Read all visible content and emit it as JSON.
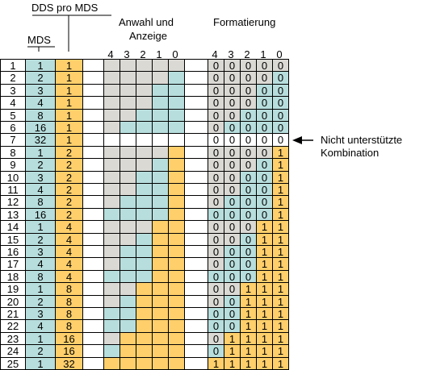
{
  "headers": {
    "dds_pro_mds": "DDS pro MDS",
    "mds": "MDS",
    "anwahl_line1": "Anwahl und",
    "anwahl_line2": "Anzeige",
    "formatierung": "Formatierung",
    "bit_labels": [
      "4",
      "3",
      "2",
      "1",
      "0"
    ]
  },
  "annotation": {
    "line1": "Nicht unterstützte",
    "line2": "Kombination"
  },
  "colors": {
    "teal": "#b7dedd",
    "gray": "#dbd9d4",
    "yellow": "#fecf6b",
    "white": "#ffffff"
  },
  "rows": [
    {
      "n": "1",
      "mds": "1",
      "dds": "1",
      "anw": "GGGGG",
      "fmt_bits": [
        "0",
        "0",
        "0",
        "0",
        "0"
      ],
      "fmt_colors": "GGGGG"
    },
    {
      "n": "2",
      "mds": "2",
      "dds": "1",
      "anw": "GGGGT",
      "fmt_bits": [
        "0",
        "0",
        "0",
        "0",
        "0"
      ],
      "fmt_colors": "GGGGT"
    },
    {
      "n": "3",
      "mds": "3",
      "dds": "1",
      "anw": "GGGTT",
      "fmt_bits": [
        "0",
        "0",
        "0",
        "0",
        "0"
      ],
      "fmt_colors": "GGGTT"
    },
    {
      "n": "4",
      "mds": "4",
      "dds": "1",
      "anw": "GGGTT",
      "fmt_bits": [
        "0",
        "0",
        "0",
        "0",
        "0"
      ],
      "fmt_colors": "GGGTT"
    },
    {
      "n": "5",
      "mds": "8",
      "dds": "1",
      "anw": "GGTTT",
      "fmt_bits": [
        "0",
        "0",
        "0",
        "0",
        "0"
      ],
      "fmt_colors": "GGTTT"
    },
    {
      "n": "6",
      "mds": "16",
      "dds": "1",
      "anw": "GTTTT",
      "fmt_bits": [
        "0",
        "0",
        "0",
        "0",
        "0"
      ],
      "fmt_colors": "GTTTT"
    },
    {
      "n": "7",
      "mds": "32",
      "dds": "1",
      "anw": "WWWWW",
      "fmt_bits": [
        "0",
        "0",
        "0",
        "0",
        "0"
      ],
      "fmt_colors": "WWWWW"
    },
    {
      "n": "8",
      "mds": "1",
      "dds": "2",
      "anw": "GGGGY",
      "fmt_bits": [
        "0",
        "0",
        "0",
        "0",
        "1"
      ],
      "fmt_colors": "GGGGY"
    },
    {
      "n": "9",
      "mds": "2",
      "dds": "2",
      "anw": "GGGTY",
      "fmt_bits": [
        "0",
        "0",
        "0",
        "0",
        "1"
      ],
      "fmt_colors": "GGGTY"
    },
    {
      "n": "10",
      "mds": "3",
      "dds": "2",
      "anw": "GGTTY",
      "fmt_bits": [
        "0",
        "0",
        "0",
        "0",
        "1"
      ],
      "fmt_colors": "GGTTY"
    },
    {
      "n": "11",
      "mds": "4",
      "dds": "2",
      "anw": "GGTTY",
      "fmt_bits": [
        "0",
        "0",
        "0",
        "0",
        "1"
      ],
      "fmt_colors": "GGTTY"
    },
    {
      "n": "12",
      "mds": "8",
      "dds": "2",
      "anw": "GTTTY",
      "fmt_bits": [
        "0",
        "0",
        "0",
        "0",
        "1"
      ],
      "fmt_colors": "GTTTY"
    },
    {
      "n": "13",
      "mds": "16",
      "dds": "2",
      "anw": "TTTTY",
      "fmt_bits": [
        "0",
        "0",
        "0",
        "0",
        "1"
      ],
      "fmt_colors": "TTTTY"
    },
    {
      "n": "14",
      "mds": "1",
      "dds": "4",
      "anw": "GGGYY",
      "fmt_bits": [
        "0",
        "0",
        "0",
        "1",
        "1"
      ],
      "fmt_colors": "GGGYY"
    },
    {
      "n": "15",
      "mds": "2",
      "dds": "4",
      "anw": "GGTYY",
      "fmt_bits": [
        "0",
        "0",
        "0",
        "1",
        "1"
      ],
      "fmt_colors": "GGTYY"
    },
    {
      "n": "16",
      "mds": "3",
      "dds": "4",
      "anw": "GTTYY",
      "fmt_bits": [
        "0",
        "0",
        "0",
        "1",
        "1"
      ],
      "fmt_colors": "GTTYY"
    },
    {
      "n": "17",
      "mds": "4",
      "dds": "4",
      "anw": "GTTYY",
      "fmt_bits": [
        "0",
        "0",
        "0",
        "1",
        "1"
      ],
      "fmt_colors": "GTTYY"
    },
    {
      "n": "18",
      "mds": "8",
      "dds": "4",
      "anw": "TTTYY",
      "fmt_bits": [
        "0",
        "0",
        "0",
        "1",
        "1"
      ],
      "fmt_colors": "TTTYY"
    },
    {
      "n": "19",
      "mds": "1",
      "dds": "8",
      "anw": "GGYYY",
      "fmt_bits": [
        "0",
        "0",
        "1",
        "1",
        "1"
      ],
      "fmt_colors": "GGYYY"
    },
    {
      "n": "20",
      "mds": "2",
      "dds": "8",
      "anw": "GTYYY",
      "fmt_bits": [
        "0",
        "0",
        "1",
        "1",
        "1"
      ],
      "fmt_colors": "GTYYY"
    },
    {
      "n": "21",
      "mds": "3",
      "dds": "8",
      "anw": "TTYYY",
      "fmt_bits": [
        "0",
        "0",
        "1",
        "1",
        "1"
      ],
      "fmt_colors": "TTYYY"
    },
    {
      "n": "22",
      "mds": "4",
      "dds": "8",
      "anw": "TTYYY",
      "fmt_bits": [
        "0",
        "0",
        "1",
        "1",
        "1"
      ],
      "fmt_colors": "TTYYY"
    },
    {
      "n": "23",
      "mds": "1",
      "dds": "16",
      "anw": "GYYYY",
      "fmt_bits": [
        "0",
        "1",
        "1",
        "1",
        "1"
      ],
      "fmt_colors": "GYYYY"
    },
    {
      "n": "24",
      "mds": "2",
      "dds": "16",
      "anw": "TYYYY",
      "fmt_bits": [
        "0",
        "1",
        "1",
        "1",
        "1"
      ],
      "fmt_colors": "TYYYY"
    },
    {
      "n": "25",
      "mds": "1",
      "dds": "32",
      "anw": "YYYYY",
      "fmt_bits": [
        "1",
        "1",
        "1",
        "1",
        "1"
      ],
      "fmt_colors": "YYYYY"
    }
  ]
}
